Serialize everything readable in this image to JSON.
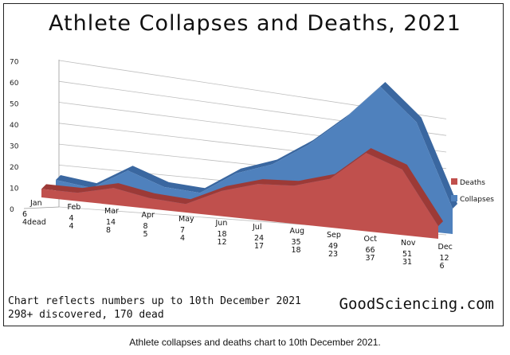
{
  "figure": {
    "title": "Athlete Collapses and Deaths, 2021",
    "footnote_line1": "Chart reflects numbers up to 10th December 2021",
    "footnote_line2": "298+ discovered, 170 dead",
    "site": "GoodSciencing.com",
    "caption": "Athlete collapses and deaths chart to 10th December 2021."
  },
  "chart_data": {
    "type": "area",
    "title": "Athlete Collapses and Deaths, 2021",
    "categories": [
      "Jan",
      "Feb",
      "Mar",
      "Apr",
      "May",
      "Jun",
      "Jul",
      "Aug",
      "Sep",
      "Oct",
      "Nov",
      "Dec"
    ],
    "series": [
      {
        "name": "Deaths",
        "color": "#c0504d",
        "values": [
          4,
          4,
          8,
          5,
          4,
          12,
          17,
          18,
          23,
          37,
          31,
          6
        ]
      },
      {
        "name": "Collapses",
        "color": "#4f81bd",
        "values": [
          6,
          4,
          14,
          8,
          7,
          18,
          24,
          35,
          49,
          66,
          51,
          12
        ]
      }
    ],
    "value_labels": {
      "Jan": [
        "6",
        "4dead"
      ],
      "Feb": [
        "4",
        "4"
      ],
      "Mar": [
        "14",
        "8"
      ],
      "Apr": [
        "8",
        "5"
      ],
      "May": [
        "7",
        "4"
      ],
      "Jun": [
        "18",
        "12"
      ],
      "Jul": [
        "24",
        "17"
      ],
      "Aug": [
        "35",
        "18"
      ],
      "Sep": [
        "49",
        "23"
      ],
      "Oct": [
        "66",
        "37"
      ],
      "Nov": [
        "51",
        "31"
      ],
      "Dec": [
        "12",
        "6"
      ]
    },
    "yticks": [
      "0",
      "10",
      "20",
      "30",
      "40",
      "50",
      "60",
      "70"
    ],
    "ylim": [
      0,
      70
    ],
    "legend": [
      "Deaths",
      "Collapses"
    ],
    "legend_position": "right",
    "grid": true
  }
}
